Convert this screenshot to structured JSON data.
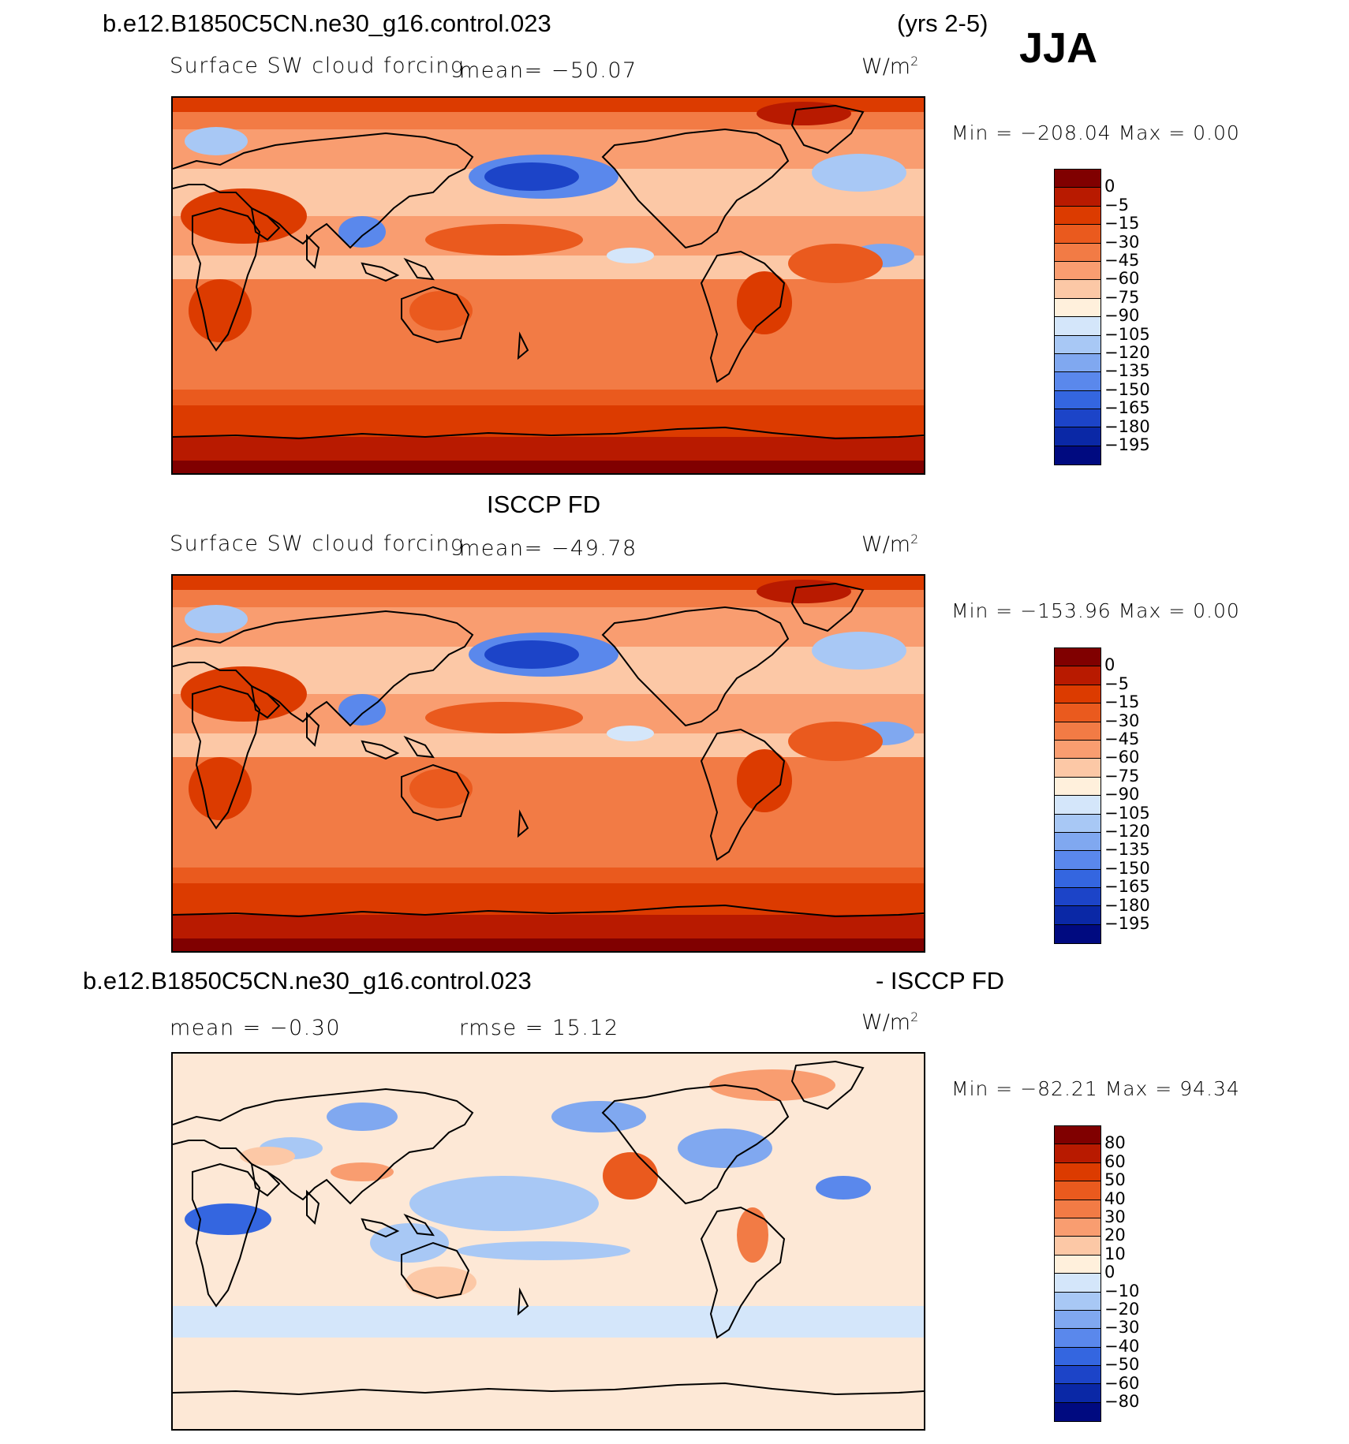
{
  "header": {
    "case_name": "b.e12.B1850C5CN.ne30_g16.control.023",
    "years": "(yrs 2-5)",
    "season": "JJA"
  },
  "panels": [
    {
      "title": "",
      "variable": "Surface SW cloud forcing",
      "mean": "mean= −50.07",
      "units": "W/m",
      "units_exp": "2",
      "minmax": "Min = −208.04 Max =    0.00"
    },
    {
      "title": "ISCCP FD",
      "variable": "Surface SW cloud forcing",
      "mean": "mean= −49.78",
      "units": "W/m",
      "units_exp": "2",
      "minmax": "Min = −153.96 Max =    0.00"
    },
    {
      "title_left": "b.e12.B1850C5CN.ne30_g16.control.023",
      "title_right": "- ISCCP FD",
      "mean": "mean =   −0.30",
      "rmse": "rmse =   15.12",
      "units": "W/m",
      "units_exp": "2",
      "minmax": "Min = −82.21 Max =  94.34"
    }
  ],
  "colorbar_abs": {
    "labels": [
      "0",
      "−5",
      "−15",
      "−30",
      "−45",
      "−60",
      "−75",
      "−90",
      "−105",
      "−120",
      "−135",
      "−150",
      "−165",
      "−180",
      "−195"
    ],
    "colors": [
      "#800000",
      "#b81a00",
      "#dc3b00",
      "#ea5a1e",
      "#f27b45",
      "#f99d70",
      "#fcc8a6",
      "#fff0dc",
      "#d4e6fa",
      "#a8c8f5",
      "#80a8f0",
      "#5a88ec",
      "#3466e0",
      "#1c44c8",
      "#0a28a6",
      "#000a80"
    ]
  },
  "colorbar_diff": {
    "labels": [
      "80",
      "60",
      "50",
      "40",
      "30",
      "20",
      "10",
      "0",
      "−10",
      "−20",
      "−30",
      "−40",
      "−50",
      "−60",
      "−80"
    ],
    "colors": [
      "#800000",
      "#b81a00",
      "#dc3b00",
      "#ea5a1e",
      "#f27b45",
      "#f99d70",
      "#fcc8a6",
      "#fff0dc",
      "#d4e6fa",
      "#a8c8f5",
      "#80a8f0",
      "#5a88ec",
      "#3466e0",
      "#1c44c8",
      "#0a28a6",
      "#000a80"
    ]
  }
}
